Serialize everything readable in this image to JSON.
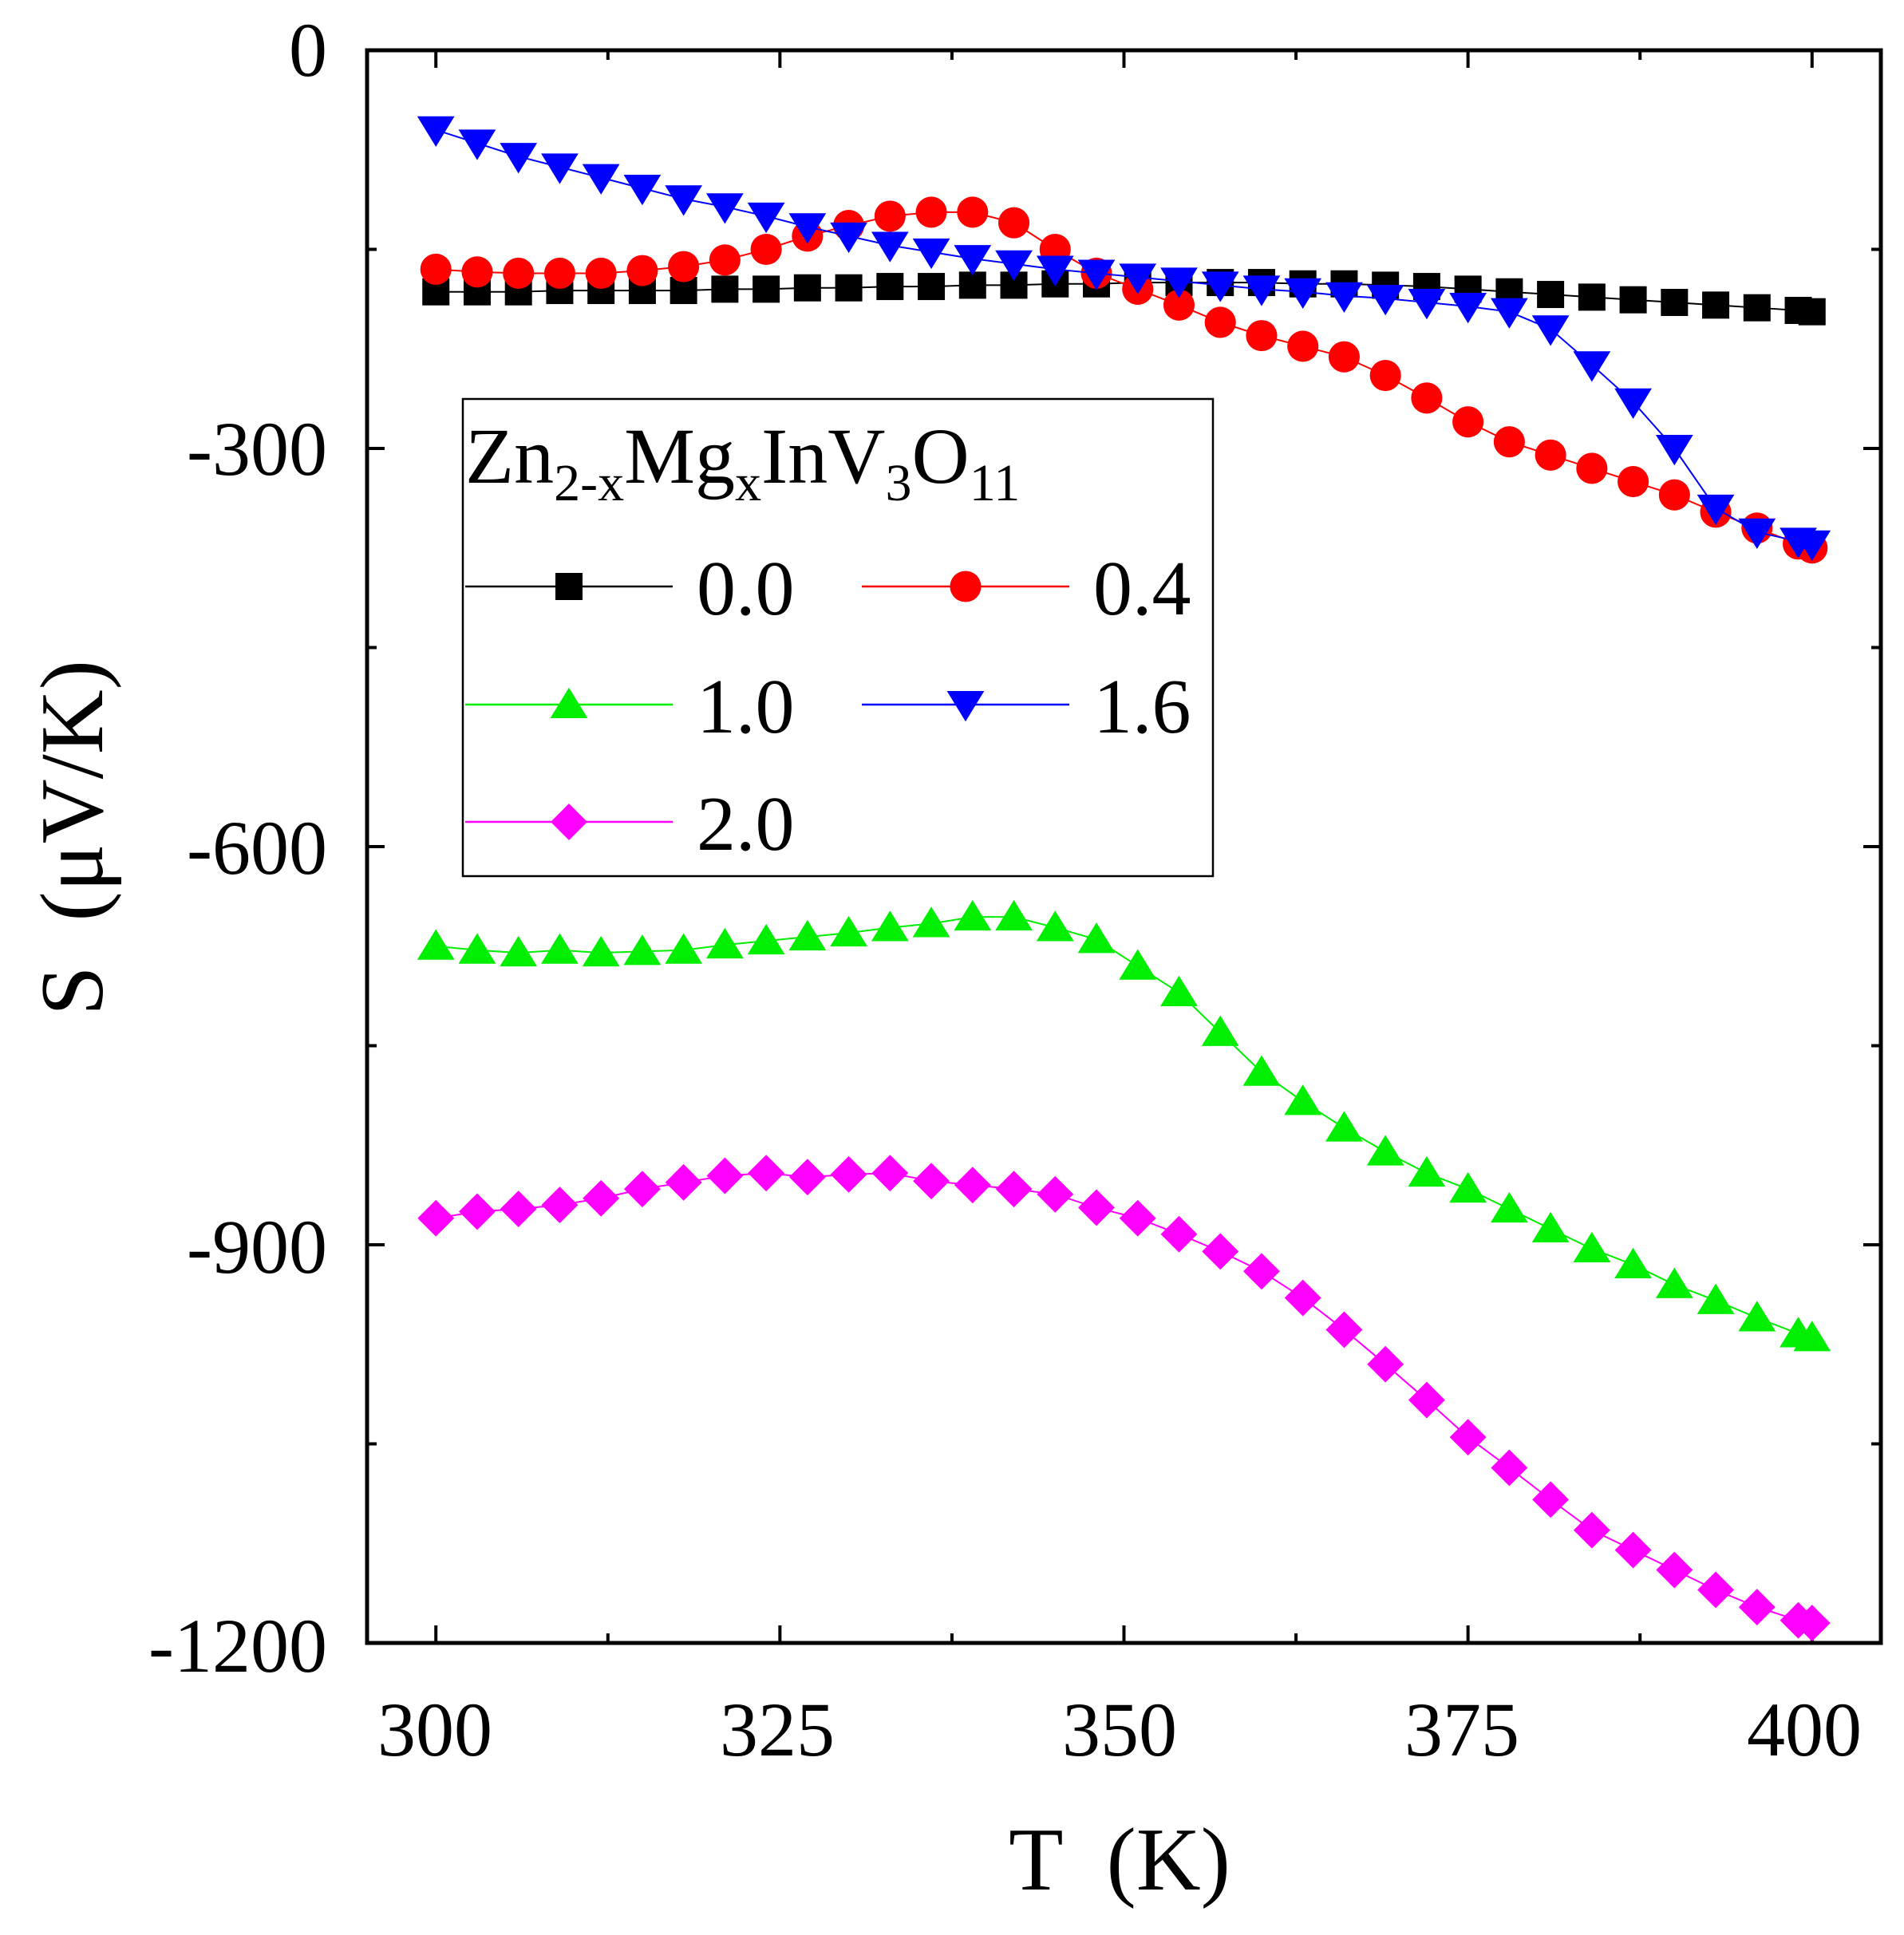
{
  "chart_data": {
    "type": "scatter",
    "title": "",
    "xlabel": "T  (K)",
    "ylabel": "S  (μV/K)",
    "xlim": [
      295,
      405
    ],
    "ylim": [
      -1200,
      0
    ],
    "xticks": [
      300,
      325,
      350,
      375,
      400
    ],
    "yticks": [
      0,
      -300,
      -600,
      -900,
      -1200
    ],
    "x_tick_labels": [
      "300",
      "325",
      "350",
      "375",
      "400"
    ],
    "y_tick_labels": [
      "0",
      "-300",
      "-600",
      "-900",
      "-1200"
    ],
    "legend": {
      "placement": "upper-left",
      "title": {
        "base1": "Zn",
        "sub1": "2-x",
        "base2": "Mg",
        "sub2": "x",
        "base3": "InV",
        "sub3": "3",
        "base4": "O",
        "sub4": "11"
      }
    },
    "x": [
      300,
      303,
      306,
      309,
      312,
      315,
      318,
      321,
      324,
      327,
      330,
      333,
      336,
      339,
      342,
      345,
      348,
      351,
      354,
      357,
      360,
      363,
      366,
      369,
      372,
      375,
      378,
      381,
      384,
      387,
      390,
      393,
      396,
      399,
      400
    ],
    "series": [
      {
        "name": "0.0",
        "color": "#000000",
        "marker": "square",
        "values": [
          -182,
          -182,
          -182,
          -181,
          -181,
          -181,
          -181,
          -180,
          -180,
          -179,
          -179,
          -178,
          -178,
          -177,
          -177,
          -176,
          -176,
          -175,
          -175,
          -175,
          -175,
          -176,
          -176,
          -177,
          -178,
          -180,
          -182,
          -184,
          -186,
          -188,
          -190,
          -192,
          -194,
          -196,
          -197
        ]
      },
      {
        "name": "0.4",
        "color": "#ff0000",
        "marker": "circle",
        "values": [
          -165,
          -167,
          -168,
          -168,
          -168,
          -166,
          -163,
          -158,
          -150,
          -140,
          -132,
          -125,
          -122,
          -122,
          -130,
          -150,
          -168,
          -180,
          -192,
          -205,
          -215,
          -223,
          -231,
          -245,
          -262,
          -280,
          -295,
          -305,
          -315,
          -325,
          -335,
          -348,
          -360,
          -372,
          -375
        ]
      },
      {
        "name": "1.0",
        "color": "#00ee00",
        "marker": "triangle-up",
        "values": [
          -675,
          -678,
          -680,
          -678,
          -680,
          -679,
          -678,
          -674,
          -671,
          -668,
          -665,
          -661,
          -658,
          -653,
          -653,
          -661,
          -670,
          -690,
          -710,
          -740,
          -770,
          -792,
          -812,
          -830,
          -846,
          -858,
          -873,
          -888,
          -903,
          -915,
          -930,
          -942,
          -955,
          -967,
          -970
        ]
      },
      {
        "name": "1.6",
        "color": "#0000ff",
        "marker": "triangle-down",
        "values": [
          -60,
          -70,
          -80,
          -88,
          -96,
          -104,
          -112,
          -118,
          -125,
          -133,
          -140,
          -147,
          -152,
          -157,
          -161,
          -165,
          -168,
          -171,
          -174,
          -177,
          -180,
          -182,
          -185,
          -187,
          -190,
          -193,
          -197,
          -210,
          -237,
          -265,
          -300,
          -345,
          -363,
          -370,
          -372
        ]
      },
      {
        "name": "2.0",
        "color": "#ff00ff",
        "marker": "diamond",
        "values": [
          -880,
          -875,
          -873,
          -870,
          -865,
          -858,
          -853,
          -848,
          -846,
          -849,
          -847,
          -846,
          -852,
          -855,
          -858,
          -862,
          -872,
          -880,
          -892,
          -905,
          -920,
          -940,
          -964,
          -990,
          -1017,
          -1045,
          -1068,
          -1092,
          -1115,
          -1130,
          -1145,
          -1160,
          -1173,
          -1183,
          -1185
        ]
      }
    ]
  }
}
